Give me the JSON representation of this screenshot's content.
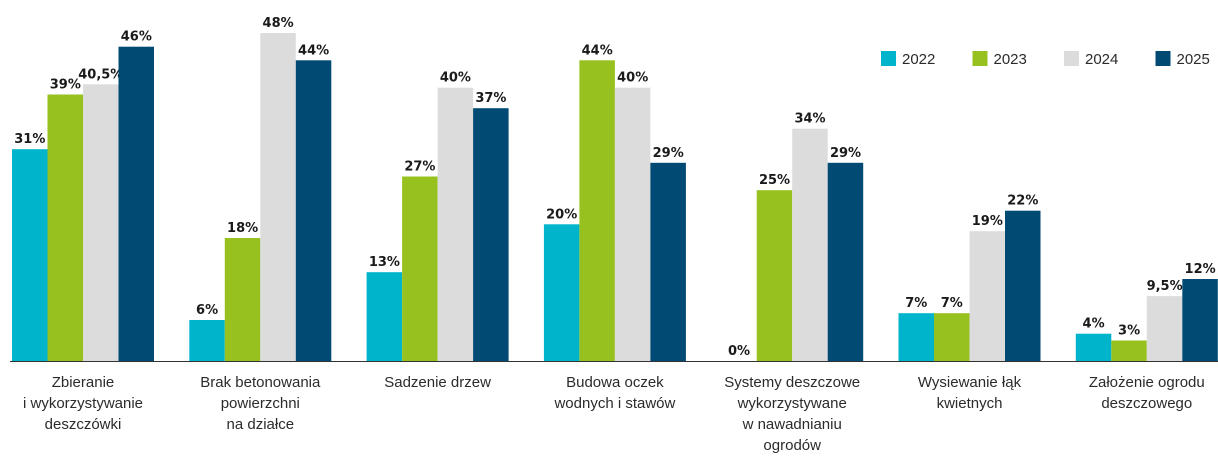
{
  "colors": {
    "2022": "#00b4cc",
    "2023": "#97c11f",
    "2024": "#dcdcdc",
    "2025": "#004a73",
    "axis": "#333333"
  },
  "chart_data": {
    "type": "bar",
    "categories": [
      [
        "Zbieranie",
        "i wykorzystywanie",
        "deszczówki"
      ],
      [
        "Brak betonowania",
        "powierzchni",
        "na działce"
      ],
      [
        "Sadzenie drzew"
      ],
      [
        "Budowa oczek",
        "wodnych i stawów"
      ],
      [
        "Systemy deszczowe",
        "wykorzystywane",
        "w nawadnianiu",
        "ogrodów"
      ],
      [
        "Wysiewanie łąk",
        "kwietnych"
      ],
      [
        "Założenie ogrodu",
        "deszczowego"
      ]
    ],
    "series": [
      {
        "name": "2022",
        "values": [
          31,
          6,
          13,
          20,
          0,
          7,
          4
        ],
        "labels": [
          "31%",
          "6%",
          "13%",
          "20%",
          "0%",
          "7%",
          "4%"
        ]
      },
      {
        "name": "2023",
        "values": [
          39,
          18,
          27,
          44,
          25,
          7,
          3
        ],
        "labels": [
          "39%",
          "18%",
          "27%",
          "44%",
          "25%",
          "7%",
          "3%"
        ]
      },
      {
        "name": "2024",
        "values": [
          40.5,
          48,
          40,
          40,
          34,
          19,
          9.5
        ],
        "labels": [
          "40,5%",
          "48%",
          "40%",
          "40%",
          "34%",
          "19%",
          "9,5%"
        ]
      },
      {
        "name": "2025",
        "values": [
          46,
          44,
          37,
          29,
          29,
          22,
          12
        ],
        "labels": [
          "46%",
          "44%",
          "37%",
          "29%",
          "29%",
          "22%",
          "12%"
        ]
      }
    ],
    "ylim": [
      0,
      48
    ],
    "legend_position": "top-right",
    "grid": false
  }
}
